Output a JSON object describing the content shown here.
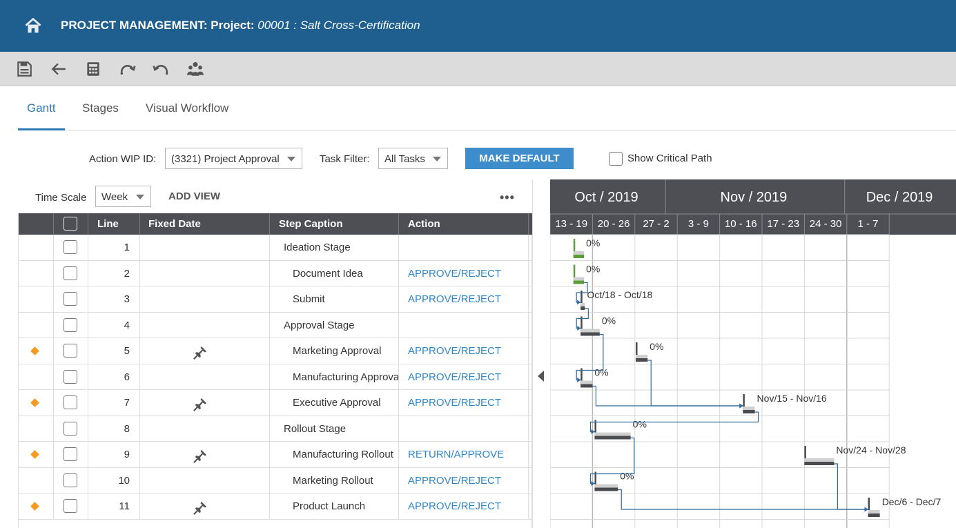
{
  "header": {
    "title_prefix": "PROJECT MANAGEMENT: Project:",
    "project": "00001 : Salt Cross-Certification"
  },
  "toolbar": {
    "buttons": [
      "save-icon",
      "back-arrow-icon",
      "calculator-icon",
      "redo-icon",
      "undo-icon",
      "users-icon"
    ]
  },
  "tabs": [
    {
      "label": "Gantt",
      "active": true
    },
    {
      "label": "Stages",
      "active": false
    },
    {
      "label": "Visual Workflow",
      "active": false
    }
  ],
  "filters": {
    "wip_label": "Action WIP ID:",
    "wip_value": "(3321) Project Approval",
    "task_filter_label": "Task Filter:",
    "task_filter_value": "All Tasks",
    "make_default_label": "MAKE DEFAULT",
    "critical_path_label": "Show Critical Path",
    "critical_path_checked": false
  },
  "view": {
    "time_scale_label": "Time Scale",
    "time_scale_value": "Week",
    "add_view_label": "ADD VIEW",
    "more_label": "•••"
  },
  "grid": {
    "columns": [
      "Line",
      "Fixed Date",
      "Step Caption",
      "Action"
    ],
    "rows": [
      {
        "line": "1",
        "caption": "Ideation Stage",
        "indent": 1,
        "action": "",
        "fixed": false
      },
      {
        "line": "2",
        "caption": "Document Idea",
        "indent": 2,
        "action": "APPROVE/REJECT",
        "fixed": false
      },
      {
        "line": "3",
        "caption": "Submit",
        "indent": 2,
        "action": "APPROVE/REJECT",
        "fixed": false
      },
      {
        "line": "4",
        "caption": "Approval Stage",
        "indent": 1,
        "action": "",
        "fixed": false
      },
      {
        "line": "5",
        "caption": "Marketing Approval",
        "indent": 2,
        "action": "APPROVE/REJECT",
        "fixed": true
      },
      {
        "line": "6",
        "caption": "Manufacturing Approval",
        "indent": 2,
        "action": "APPROVE/REJECT",
        "fixed": false
      },
      {
        "line": "7",
        "caption": "Executive Approval",
        "indent": 2,
        "action": "APPROVE/REJECT",
        "fixed": true
      },
      {
        "line": "8",
        "caption": "Rollout Stage",
        "indent": 1,
        "action": "",
        "fixed": false
      },
      {
        "line": "9",
        "caption": "Manufacturing Rollout",
        "indent": 2,
        "action": "RETURN/APPROVE",
        "fixed": true
      },
      {
        "line": "10",
        "caption": "Marketing Rollout",
        "indent": 2,
        "action": "APPROVE/REJECT",
        "fixed": false
      },
      {
        "line": "11",
        "caption": "Product Launch",
        "indent": 2,
        "action": "APPROVE/REJECT",
        "fixed": true
      }
    ]
  },
  "gantt": {
    "months": [
      "Oct / 2019",
      "Nov / 2019",
      "Dec / 2019"
    ],
    "weeks": [
      "13 - 19",
      "20 - 26",
      "27 - 2",
      "3 - 9",
      "10 - 16",
      "17 - 23",
      "24 - 30",
      "1 - 7"
    ],
    "bars": [
      {
        "row": 0,
        "start_week": 0.55,
        "dur_weeks": 0.25,
        "label": "0%",
        "summary": true
      },
      {
        "row": 1,
        "start_week": 0.55,
        "dur_weeks": 0.25,
        "label": "0%",
        "summary": false
      },
      {
        "row": 2,
        "start_week": 0.72,
        "dur_weeks": 0.1,
        "label": "Oct/18 - Oct/18",
        "summary": false
      },
      {
        "row": 3,
        "start_week": 0.72,
        "dur_weeks": 0.45,
        "label": "0%",
        "summary": true
      },
      {
        "row": 4,
        "start_week": 2.02,
        "dur_weeks": 0.28,
        "label": "0%",
        "summary": false
      },
      {
        "row": 5,
        "start_week": 0.72,
        "dur_weeks": 0.28,
        "label": "0%",
        "summary": false
      },
      {
        "row": 6,
        "start_week": 4.55,
        "dur_weeks": 0.28,
        "label": "Nov/15 - Nov/16",
        "summary": false
      },
      {
        "row": 7,
        "start_week": 1.05,
        "dur_weeks": 0.85,
        "label": "0%",
        "summary": true
      },
      {
        "row": 8,
        "start_week": 6.0,
        "dur_weeks": 0.7,
        "label": "Nov/24 - Nov/28",
        "summary": false
      },
      {
        "row": 9,
        "start_week": 1.05,
        "dur_weeks": 0.55,
        "label": "0%",
        "summary": false
      },
      {
        "row": 10,
        "start_week": 7.5,
        "dur_weeks": 0.28,
        "label": "Dec/6 - Dec/7",
        "summary": false
      }
    ],
    "colors": {
      "done": "#5a9e3a",
      "bar": "#4a4b50",
      "track": "#d0d0d0",
      "link": "#2f6a98"
    }
  }
}
